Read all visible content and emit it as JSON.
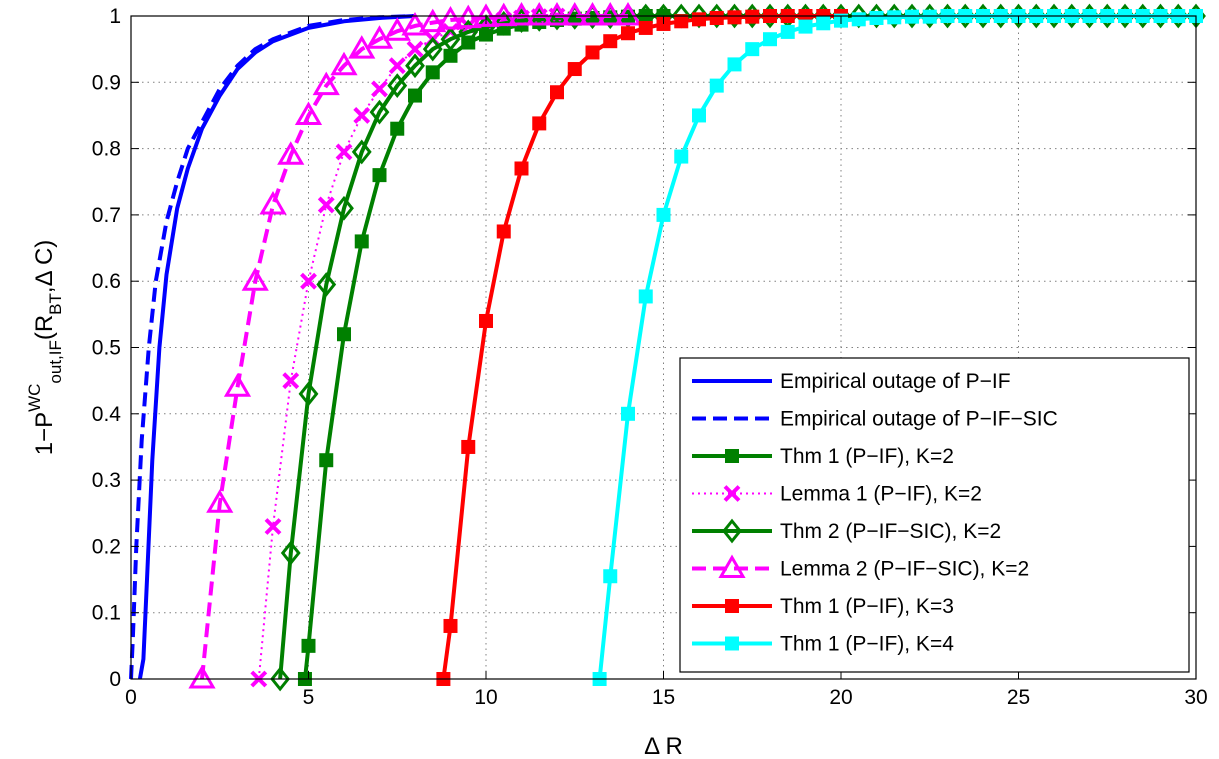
{
  "chart_data": {
    "type": "line",
    "title": "",
    "xlabel": "Δ R",
    "ylabel": {
      "base": "1−P",
      "superscript": "WC",
      "subscript": "out,IF",
      "open": "(R",
      "sub2": "BT",
      "rest": ",Δ C)"
    },
    "xlim": [
      0,
      30
    ],
    "ylim": [
      0,
      1
    ],
    "xticks": [
      0,
      5,
      10,
      15,
      20,
      25,
      30
    ],
    "yticks": [
      0,
      0.1,
      0.2,
      0.3,
      0.4,
      0.5,
      0.6,
      0.7,
      0.8,
      0.9,
      1
    ],
    "xtick_labels": [
      "0",
      "5",
      "10",
      "15",
      "20",
      "25",
      "30"
    ],
    "ytick_labels": [
      "0",
      "0.1",
      "0.2",
      "0.3",
      "0.4",
      "0.5",
      "0.6",
      "0.7",
      "0.8",
      "0.9",
      "1"
    ],
    "grid": true,
    "legend_position": "bottom-right",
    "series": [
      {
        "name": "Empirical outage of P−IF",
        "color": "#0000ff",
        "style": "solid",
        "marker": "none",
        "x": [
          0.25,
          0.35,
          0.45,
          0.6,
          0.8,
          1.0,
          1.3,
          1.6,
          2.0,
          2.5,
          3.0,
          3.5,
          4.0,
          5.0,
          6.0,
          7.0,
          8.0
        ],
        "y": [
          0.0,
          0.03,
          0.15,
          0.33,
          0.5,
          0.61,
          0.71,
          0.77,
          0.83,
          0.88,
          0.92,
          0.945,
          0.962,
          0.982,
          0.992,
          0.997,
          1.0
        ]
      },
      {
        "name": "Empirical outage of P−IF−SIC",
        "color": "#0000ff",
        "style": "dashed",
        "marker": "none",
        "x": [
          0.0,
          0.05,
          0.15,
          0.3,
          0.5,
          0.7,
          1.0,
          1.3,
          1.6,
          2.0,
          2.5,
          3.0,
          3.5,
          4.0,
          5.0,
          6.0,
          7.0,
          8.0
        ],
        "y": [
          0.0,
          0.06,
          0.2,
          0.36,
          0.5,
          0.6,
          0.69,
          0.75,
          0.8,
          0.84,
          0.89,
          0.925,
          0.95,
          0.965,
          0.985,
          0.994,
          0.998,
          1.0
        ]
      },
      {
        "name": "Thm 1 (P−IF), K=2",
        "color": "#008000",
        "style": "solid",
        "marker": "square",
        "x": [
          4.9,
          5.0,
          5.5,
          6.0,
          6.5,
          7.0,
          7.5,
          8.0,
          8.5,
          9.0,
          9.5,
          10.0,
          10.5,
          11.0,
          11.5,
          12.0,
          12.5,
          13.0,
          13.5,
          14.0,
          14.5,
          15.0
        ],
        "y": [
          0.0,
          0.05,
          0.33,
          0.52,
          0.66,
          0.76,
          0.83,
          0.88,
          0.915,
          0.94,
          0.96,
          0.972,
          0.981,
          0.987,
          0.991,
          0.994,
          0.996,
          0.997,
          0.998,
          0.999,
          1.0,
          1.0
        ]
      },
      {
        "name": "Lemma 1 (P−IF), K=2",
        "color": "#ff00ff",
        "style": "dotted",
        "marker": "x",
        "x": [
          3.6,
          4.0,
          4.5,
          5.0,
          5.5,
          6.0,
          6.5,
          7.0,
          7.5,
          8.0,
          8.5,
          9.0,
          9.5,
          10.0,
          10.5,
          11.0,
          11.5,
          12.0
        ],
        "y": [
          0.0,
          0.23,
          0.45,
          0.6,
          0.715,
          0.795,
          0.85,
          0.89,
          0.925,
          0.95,
          0.965,
          0.977,
          0.985,
          0.99,
          0.994,
          0.997,
          0.999,
          1.0
        ]
      },
      {
        "name": "Thm 2 (P−IF−SIC), K=2",
        "color": "#008000",
        "style": "solid",
        "marker": "diamond",
        "x": [
          4.2,
          4.5,
          5.0,
          5.5,
          6.0,
          6.5,
          7.0,
          7.5,
          8.0,
          8.5,
          9.0,
          9.5,
          10.0,
          10.5,
          11.0,
          11.5,
          12.0,
          12.5,
          13.0,
          13.5,
          14.0,
          14.5,
          15.0,
          15.5,
          16.0,
          16.5,
          17.0,
          17.5,
          18.0,
          18.5,
          19.0,
          19.5,
          20.0,
          20.5,
          21.0,
          21.5,
          22.0,
          22.5,
          23.0,
          23.5,
          24.0,
          24.5,
          25.0,
          25.5,
          26.0,
          26.5,
          27.0,
          27.5,
          28.0,
          28.5,
          29.0,
          29.5,
          30.0
        ],
        "y": [
          0.0,
          0.19,
          0.43,
          0.595,
          0.71,
          0.795,
          0.855,
          0.895,
          0.925,
          0.95,
          0.965,
          0.976,
          0.984,
          0.989,
          0.993,
          0.995,
          0.997,
          0.998,
          0.999,
          0.999,
          1.0,
          1.0,
          1.0,
          1.0,
          1.0,
          1.0,
          1.0,
          1.0,
          1.0,
          1.0,
          1.0,
          1.0,
          1.0,
          1.0,
          1.0,
          1.0,
          1.0,
          1.0,
          1.0,
          1.0,
          1.0,
          1.0,
          1.0,
          1.0,
          1.0,
          1.0,
          1.0,
          1.0,
          1.0,
          1.0,
          1.0,
          1.0,
          1.0
        ]
      },
      {
        "name": "Lemma 2 (P−IF−SIC), K=2",
        "color": "#ff00ff",
        "style": "dashed",
        "marker": "triangle",
        "x": [
          2.0,
          2.5,
          3.0,
          3.5,
          4.0,
          4.5,
          5.0,
          5.5,
          6.0,
          6.5,
          7.0,
          7.5,
          8.0,
          8.5,
          9.0,
          9.5,
          10.0,
          10.5,
          11.0,
          11.5,
          12.0,
          12.5,
          13.0,
          13.5,
          14.0
        ],
        "y": [
          0.0,
          0.265,
          0.44,
          0.6,
          0.715,
          0.79,
          0.85,
          0.895,
          0.925,
          0.95,
          0.965,
          0.977,
          0.985,
          0.99,
          0.994,
          0.996,
          0.998,
          0.999,
          1.0,
          1.0,
          1.0,
          1.0,
          1.0,
          1.0,
          1.0
        ]
      },
      {
        "name": "Thm 1 (P−IF), K=3",
        "color": "#ff0000",
        "style": "solid",
        "marker": "square",
        "x": [
          8.8,
          9.0,
          9.5,
          10.0,
          10.5,
          11.0,
          11.5,
          12.0,
          12.5,
          13.0,
          13.5,
          14.0,
          14.5,
          15.0,
          15.5,
          16.0,
          16.5,
          17.0,
          17.5,
          18.0,
          18.5,
          19.0,
          19.5,
          20.0
        ],
        "y": [
          0.0,
          0.08,
          0.35,
          0.54,
          0.675,
          0.77,
          0.838,
          0.885,
          0.92,
          0.945,
          0.962,
          0.974,
          0.982,
          0.988,
          0.992,
          0.995,
          0.997,
          0.998,
          0.999,
          1.0,
          1.0,
          1.0,
          1.0,
          1.0
        ]
      },
      {
        "name": "Thm 1 (P−IF), K=4",
        "color": "#00ffff",
        "style": "solid",
        "marker": "square",
        "x": [
          13.2,
          13.5,
          14.0,
          14.5,
          15.0,
          15.5,
          16.0,
          16.5,
          17.0,
          17.5,
          18.0,
          18.5,
          19.0,
          19.5,
          20.0,
          20.5,
          21.0,
          21.5,
          22.0,
          22.5,
          23.0,
          23.5,
          24.0,
          24.5,
          25.0,
          25.5,
          26.0,
          26.5,
          27.0,
          27.5,
          28.0,
          28.5,
          29.0,
          29.5,
          30.0
        ],
        "y": [
          0.0,
          0.155,
          0.4,
          0.577,
          0.7,
          0.788,
          0.85,
          0.895,
          0.927,
          0.95,
          0.965,
          0.976,
          0.984,
          0.989,
          0.993,
          0.995,
          0.997,
          0.998,
          0.999,
          0.999,
          1.0,
          1.0,
          1.0,
          1.0,
          1.0,
          1.0,
          1.0,
          1.0,
          1.0,
          1.0,
          1.0,
          1.0,
          1.0,
          1.0,
          1.0
        ]
      }
    ]
  }
}
